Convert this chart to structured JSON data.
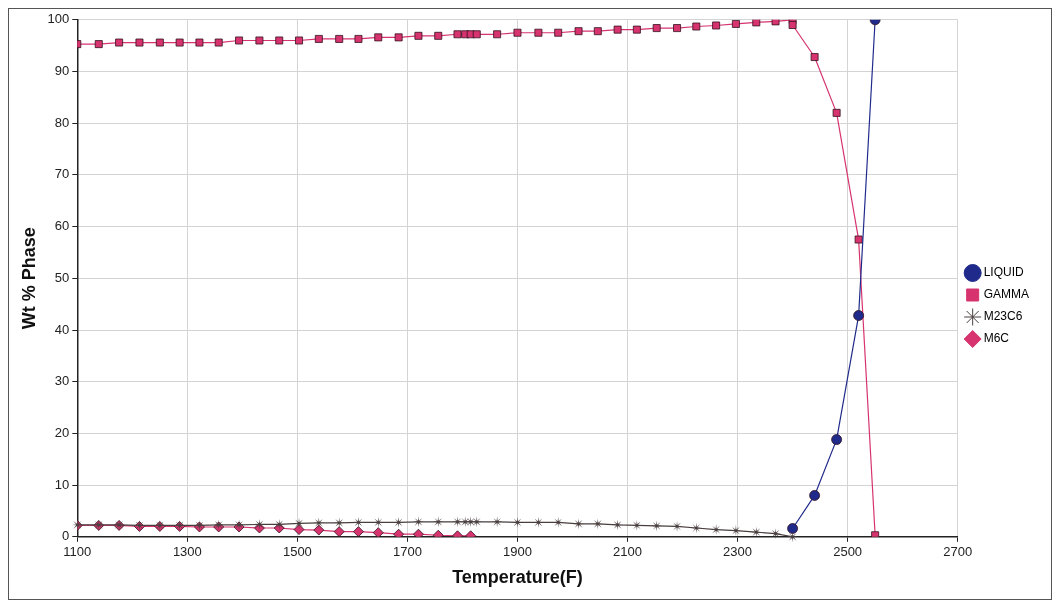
{
  "chart_data": {
    "type": "line",
    "xlabel": "Temperature(F)",
    "ylabel": "Wt % Phase",
    "xlim": [
      1100,
      2700
    ],
    "xticks": [
      1100,
      1300,
      1500,
      1700,
      1900,
      2100,
      2300,
      2500,
      2700
    ],
    "ylim": [
      0,
      100
    ],
    "yticks": [
      0,
      10,
      20,
      30,
      40,
      50,
      60,
      70,
      80,
      90,
      100
    ],
    "grid": true,
    "legend": "right",
    "series": [
      {
        "name": "LIQUID",
        "color": "#1f2a8a",
        "marker": "circle",
        "x": [
          2400,
          2440,
          2480,
          2520,
          2550
        ],
        "values": [
          1.6,
          8.0,
          18.8,
          42.8,
          100
        ]
      },
      {
        "name": "GAMMA",
        "color": "#d6336f",
        "marker": "square",
        "x": [
          1100,
          1139,
          1176,
          1213,
          1250,
          1286,
          1322,
          1357,
          1394,
          1431,
          1467,
          1503,
          1539,
          1576,
          1611,
          1647,
          1684,
          1720,
          1756,
          1791,
          1805,
          1815,
          1826,
          1863,
          1900,
          1938,
          1974,
          2011,
          2046,
          2082,
          2117,
          2153,
          2190,
          2225,
          2261,
          2297,
          2334,
          2369,
          2400,
          2400,
          2440,
          2480,
          2520,
          2550
        ],
        "values": [
          95.3,
          95.3,
          95.6,
          95.6,
          95.6,
          95.6,
          95.6,
          95.6,
          96.0,
          96.0,
          96.0,
          96.0,
          96.3,
          96.3,
          96.3,
          96.6,
          96.6,
          96.9,
          96.9,
          97.2,
          97.2,
          97.2,
          97.2,
          97.2,
          97.5,
          97.5,
          97.5,
          97.8,
          97.8,
          98.1,
          98.1,
          98.4,
          98.4,
          98.7,
          98.9,
          99.2,
          99.5,
          99.7,
          100,
          99.0,
          92.8,
          82.0,
          57.5,
          0.3
        ]
      },
      {
        "name": "M23C6",
        "color": "#4a3f3f",
        "marker": "star",
        "x": [
          1100,
          1139,
          1176,
          1213,
          1250,
          1286,
          1322,
          1357,
          1394,
          1431,
          1467,
          1503,
          1539,
          1576,
          1611,
          1647,
          1684,
          1720,
          1756,
          1791,
          1805,
          1815,
          1826,
          1863,
          1900,
          1938,
          1974,
          2011,
          2046,
          2082,
          2117,
          2153,
          2190,
          2225,
          2261,
          2297,
          2334,
          2369,
          2400
        ],
        "values": [
          2.3,
          2.3,
          2.3,
          2.2,
          2.2,
          2.2,
          2.2,
          2.3,
          2.3,
          2.4,
          2.4,
          2.6,
          2.7,
          2.7,
          2.8,
          2.8,
          2.8,
          2.9,
          2.9,
          2.9,
          2.9,
          2.9,
          2.9,
          2.9,
          2.8,
          2.8,
          2.8,
          2.5,
          2.5,
          2.3,
          2.2,
          2.1,
          2.0,
          1.7,
          1.4,
          1.2,
          0.9,
          0.6,
          0.0
        ]
      },
      {
        "name": "M6C",
        "color": "#d6336f",
        "marker": "diamond",
        "x": [
          1100,
          1139,
          1176,
          1213,
          1250,
          1286,
          1322,
          1357,
          1394,
          1431,
          1467,
          1503,
          1539,
          1576,
          1611,
          1647,
          1684,
          1720,
          1756,
          1791,
          1815
        ],
        "values": [
          2.2,
          2.2,
          2.2,
          2.0,
          2.0,
          2.0,
          1.9,
          1.9,
          1.9,
          1.7,
          1.7,
          1.4,
          1.3,
          1.0,
          1.0,
          0.8,
          0.5,
          0.5,
          0.3,
          0.2,
          0.2
        ]
      }
    ]
  }
}
